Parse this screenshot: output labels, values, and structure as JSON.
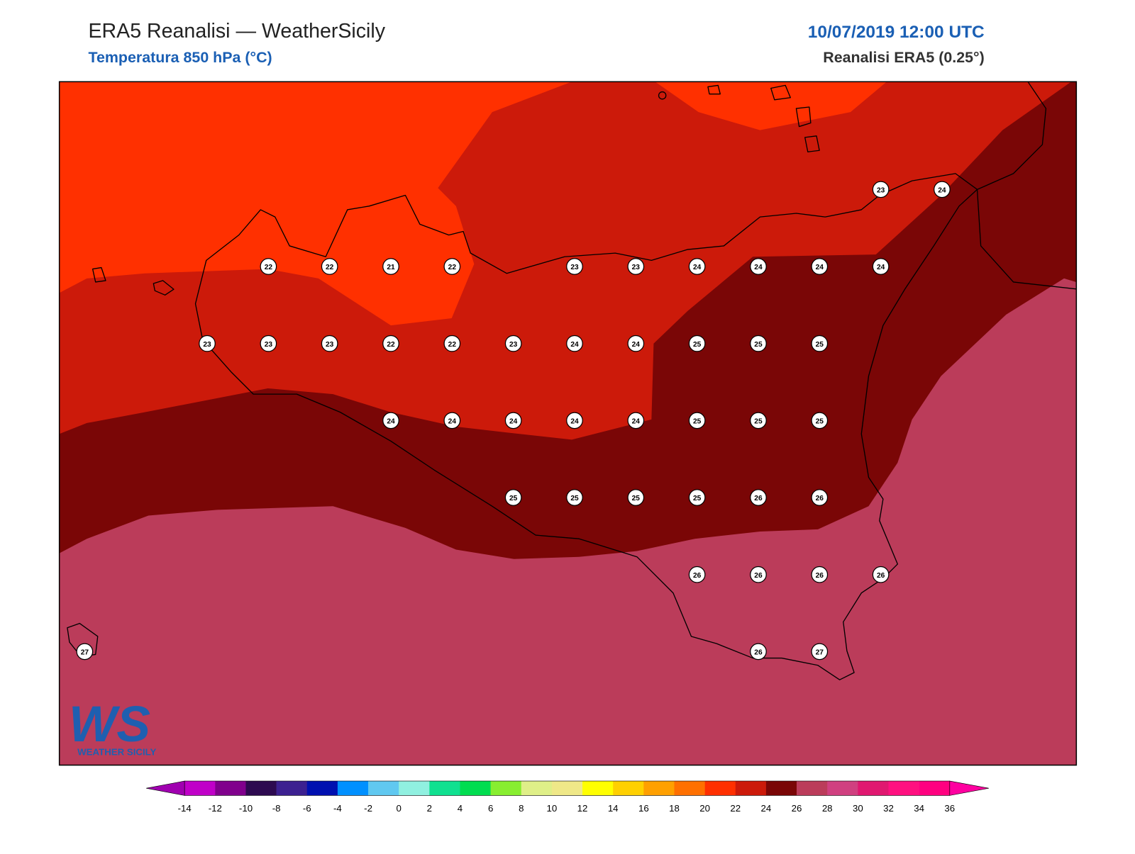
{
  "header": {
    "title": "ERA5 Reanalisi — WeatherSicily",
    "subtitle": "Temperatura 850 hPa (°C)",
    "datetime": "10/07/2019 12:00 UTC",
    "source": "Reanalisi ERA5 (0.25°)"
  },
  "stations": {
    "grid": [
      [
        null,
        null,
        null,
        null,
        null,
        null,
        null,
        null,
        null,
        null,
        null,
        null,
        null,
        23,
        24
      ],
      [
        null,
        null,
        null,
        22,
        22,
        21,
        22,
        null,
        23,
        23,
        24,
        24,
        24,
        24,
        null
      ],
      [
        null,
        null,
        23,
        23,
        23,
        22,
        22,
        23,
        24,
        24,
        25,
        25,
        25,
        null,
        null
      ],
      [
        null,
        null,
        null,
        null,
        null,
        24,
        24,
        24,
        24,
        24,
        25,
        25,
        25,
        null,
        null
      ],
      [
        null,
        null,
        null,
        null,
        null,
        null,
        null,
        25,
        25,
        25,
        25,
        26,
        26,
        null,
        null
      ],
      [
        null,
        null,
        null,
        null,
        null,
        null,
        null,
        null,
        null,
        null,
        26,
        26,
        26,
        26,
        null
      ],
      [
        27,
        null,
        null,
        null,
        null,
        null,
        null,
        null,
        null,
        null,
        null,
        26,
        27,
        null,
        null
      ]
    ]
  },
  "colorbar": {
    "ticks": [
      -14,
      -12,
      -10,
      -8,
      -6,
      -4,
      -2,
      0,
      2,
      4,
      6,
      8,
      10,
      12,
      14,
      16,
      18,
      20,
      22,
      24,
      26,
      28,
      30,
      32,
      34,
      36
    ],
    "colors": [
      "#c000c8",
      "#80008c",
      "#2d0a50",
      "#3c2090",
      "#0010b0",
      "#0090ff",
      "#60c8f0",
      "#90f0e0",
      "#10e090",
      "#00dd50",
      "#88ee30",
      "#dfef88",
      "#efe888",
      "#ffff00",
      "#ffd000",
      "#ffa000",
      "#ff7000",
      "#ff3000",
      "#cc1a0a",
      "#7a0606",
      "#bb3c5a",
      "#d04080",
      "#e01870",
      "#ff1080",
      "#ff0080"
    ],
    "under_color": "#a000b0",
    "over_color": "#ff00a0"
  },
  "logo": {
    "text": "WS",
    "caption": "WEATHER SICILY"
  }
}
